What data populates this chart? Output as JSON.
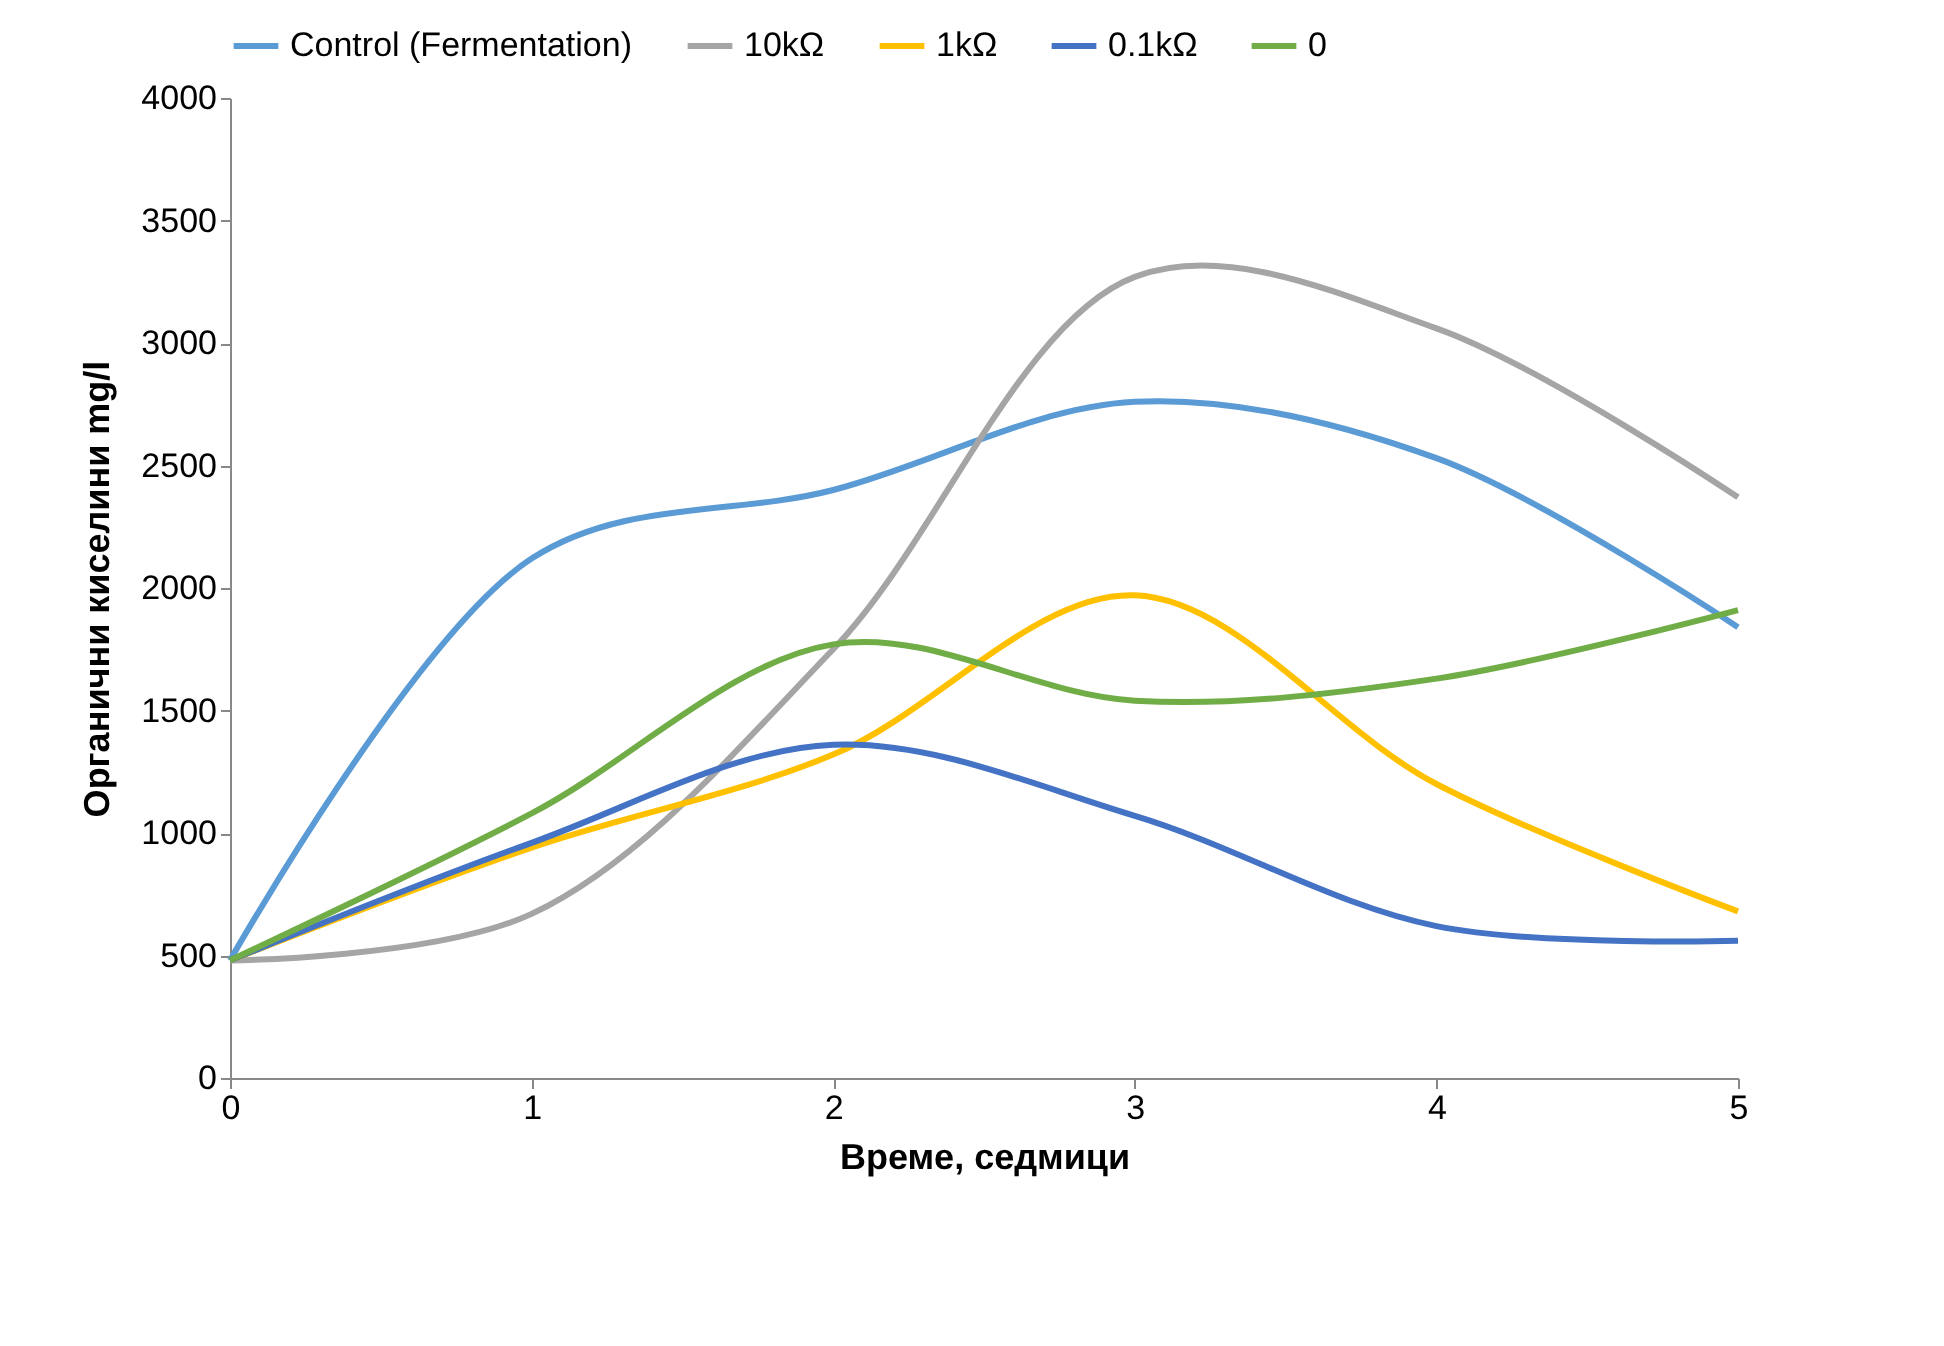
{
  "chart_data": {
    "type": "line",
    "xlabel": "Време, седмици",
    "ylabel": "Органични киселини  mg/l",
    "x": [
      0,
      1,
      2,
      3,
      4,
      5
    ],
    "series": [
      {
        "name": "Control (Fermentation)",
        "color": "#5b9bd5",
        "values": [
          480,
          2120,
          2400,
          2760,
          2530,
          1840
        ]
      },
      {
        "name": "10kΩ",
        "color": "#a5a5a5",
        "values": [
          480,
          670,
          1750,
          3270,
          3060,
          2370
        ]
      },
      {
        "name": "1kΩ",
        "color": "#ffc000",
        "values": [
          480,
          940,
          1320,
          1970,
          1200,
          680
        ]
      },
      {
        "name": "0.1kΩ",
        "color": "#4472c4",
        "values": [
          480,
          960,
          1360,
          1070,
          620,
          560
        ]
      },
      {
        "name": "0",
        "color": "#70ad47",
        "values": [
          480,
          1080,
          1770,
          1540,
          1630,
          1910
        ]
      }
    ],
    "xlim": [
      0,
      5
    ],
    "xticks": [
      0,
      1,
      2,
      3,
      4,
      5
    ],
    "ylim": [
      0,
      4000
    ],
    "yticks": [
      0,
      500,
      1000,
      1500,
      2000,
      2500,
      3000,
      3500,
      4000
    ],
    "grid": false,
    "legend": "top",
    "marker": "none",
    "line_style": "solid"
  }
}
